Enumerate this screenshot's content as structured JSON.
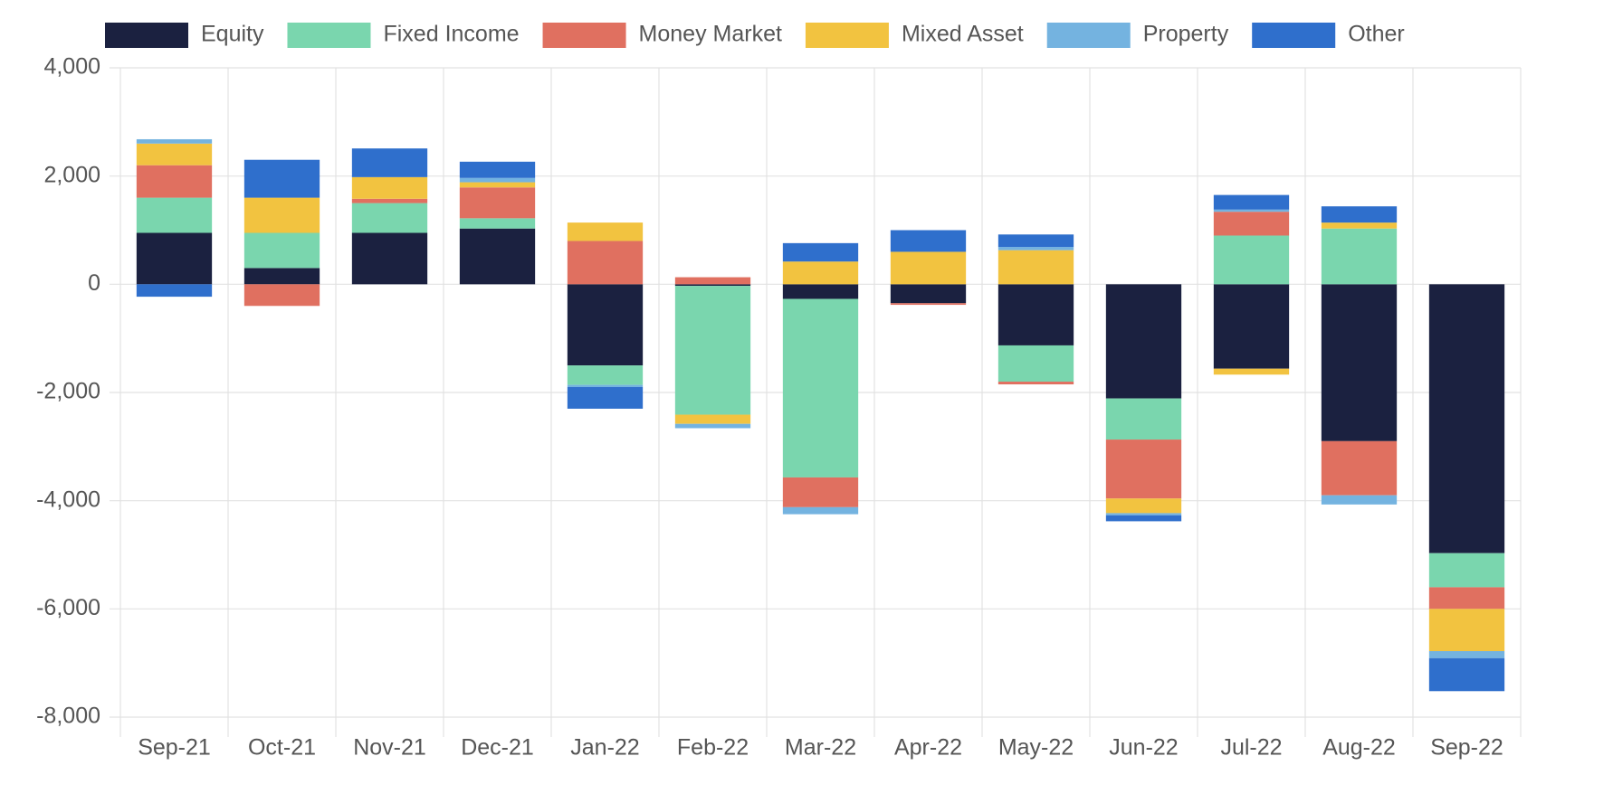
{
  "chart_data": {
    "type": "bar",
    "stacked": true,
    "grid": true,
    "legend": "top",
    "categories": [
      "Sep-21",
      "Oct-21",
      "Nov-21",
      "Dec-21",
      "Jan-22",
      "Feb-22",
      "Mar-22",
      "Apr-22",
      "May-22",
      "Jun-22",
      "Jul-22",
      "Aug-22",
      "Sep-22"
    ],
    "ylim": [
      -8000,
      4000
    ],
    "yticks": [
      {
        "value": -8000,
        "label": "-8,000"
      },
      {
        "value": -6000,
        "label": "-6,000"
      },
      {
        "value": -4000,
        "label": "-4,000"
      },
      {
        "value": -2000,
        "label": "-2,000"
      },
      0,
      {
        "value": 2000,
        "label": "2,000"
      },
      {
        "value": 4000,
        "label": "4,000"
      }
    ],
    "series": [
      {
        "name": "Equity",
        "color": "#1b2140",
        "values": [
          950,
          300,
          950,
          1030,
          -1500,
          -30,
          -270,
          -350,
          -1130,
          -2110,
          -1560,
          -2900,
          -4970
        ]
      },
      {
        "name": "Fixed Income",
        "color": "#7ad6ae",
        "values": [
          650,
          650,
          550,
          190,
          -360,
          -2380,
          -3300,
          0,
          -670,
          -760,
          900,
          1030,
          -630
        ]
      },
      {
        "name": "Money Market",
        "color": "#e07060",
        "values": [
          600,
          -400,
          80,
          570,
          800,
          130,
          -550,
          -30,
          -50,
          -1090,
          440,
          -1000,
          -400
        ]
      },
      {
        "name": "Mixed Asset",
        "color": "#f2c340",
        "values": [
          400,
          650,
          400,
          95,
          340,
          -170,
          420,
          600,
          630,
          -270,
          -110,
          110,
          -780
        ]
      },
      {
        "name": "Property",
        "color": "#74b3e0",
        "values": [
          80,
          0,
          0,
          80,
          -40,
          -80,
          -130,
          0,
          60,
          -40,
          40,
          -170,
          -130
        ]
      },
      {
        "name": "Other",
        "color": "#2f6fcc",
        "values": [
          -230,
          700,
          530,
          300,
          -400,
          0,
          340,
          400,
          230,
          -110,
          270,
          300,
          -610
        ]
      }
    ]
  }
}
